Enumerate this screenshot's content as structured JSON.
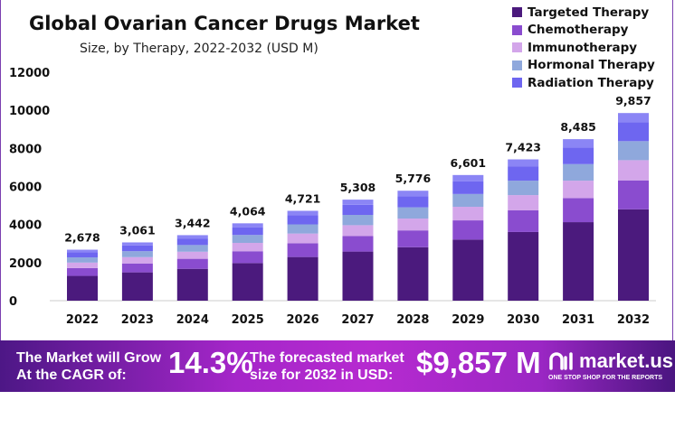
{
  "chart_data": {
    "type": "bar",
    "stacked": true,
    "title": "Global Ovarian Cancer Drugs Market",
    "subtitle": "Size, by Therapy, 2022-2032 (USD M)",
    "xlabel": "",
    "ylabel": "",
    "ylim": [
      0,
      12000
    ],
    "yticks": [
      "0",
      "2000",
      "4000",
      "6000",
      "8000",
      "10000",
      "12000"
    ],
    "grid": false,
    "legend_position": "top-right",
    "categories": [
      "2022",
      "2023",
      "2024",
      "2025",
      "2026",
      "2027",
      "2028",
      "2029",
      "2030",
      "2031",
      "2032"
    ],
    "totals": [
      "2,678",
      "3,061",
      "3,442",
      "4,064",
      "4,721",
      "5,308",
      "5,776",
      "6,601",
      "7,423",
      "8,485",
      "9,857"
    ],
    "series": [
      {
        "name": "Targeted Therapy",
        "color": "#4b1a7d",
        "values": [
          1302,
          1488,
          1673,
          1975,
          2294,
          2580,
          2807,
          3208,
          3608,
          4124,
          4800
        ]
      },
      {
        "name": "Chemotherapy",
        "color": "#8a4ccf",
        "values": [
          410,
          468,
          527,
          622,
          722,
          812,
          884,
          1010,
          1136,
          1264,
          1520
        ]
      },
      {
        "name": "Immunotherapy",
        "color": "#d3a6ea",
        "values": [
          289,
          331,
          372,
          439,
          510,
          573,
          624,
          713,
          802,
          916,
          1060
        ]
      },
      {
        "name": "Hormonal Therapy",
        "color": "#8fa8dc",
        "values": [
          273,
          312,
          351,
          415,
          482,
          541,
          589,
          673,
          757,
          869,
          1000
        ]
      },
      {
        "name": "Radiation Therapy",
        "color": "#6e66f0",
        "values": [
          268,
          306,
          344,
          406,
          472,
          531,
          578,
          660,
          742,
          872,
          985
        ]
      },
      {
        "color": "#8b85f5",
        "values": [
          136,
          156,
          175,
          207,
          241,
          271,
          294,
          337,
          378,
          440,
          492
        ]
      }
    ]
  },
  "banner": {
    "line1a": "The Market will Grow",
    "line1b": "At the CAGR of:",
    "cagr": "14.3%",
    "line2a": "The forecasted market",
    "line2b": "size for 2032 in USD:",
    "forecast": "$9,857 M",
    "logo": "market.us",
    "tagline": "ONE STOP SHOP FOR THE REPORTS"
  }
}
